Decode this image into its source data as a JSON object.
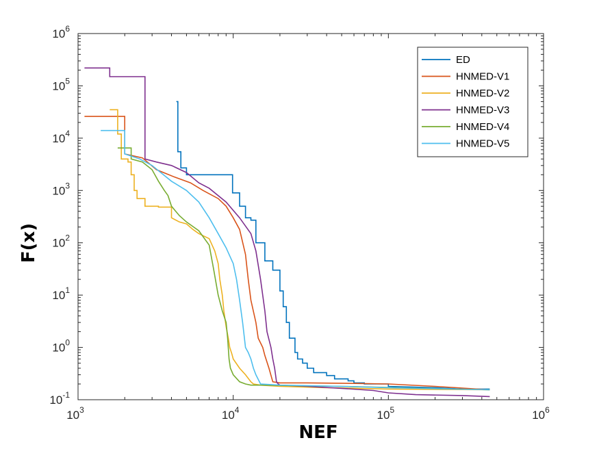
{
  "chart_data": {
    "type": "line",
    "xlabel": "NEF",
    "ylabel": "F(x)",
    "xscale": "log",
    "yscale": "log",
    "xlim": [
      1000,
      1000000
    ],
    "ylim": [
      0.1,
      1000000
    ],
    "x_ticks": [
      {
        "base": "10",
        "exp": "3"
      },
      {
        "base": "10",
        "exp": "4"
      },
      {
        "base": "10",
        "exp": "5"
      },
      {
        "base": "10",
        "exp": "6"
      }
    ],
    "y_ticks": [
      {
        "base": "10",
        "exp": "-1"
      },
      {
        "base": "10",
        "exp": "0"
      },
      {
        "base": "10",
        "exp": "1"
      },
      {
        "base": "10",
        "exp": "2"
      },
      {
        "base": "10",
        "exp": "3"
      },
      {
        "base": "10",
        "exp": "4"
      },
      {
        "base": "10",
        "exp": "5"
      },
      {
        "base": "10",
        "exp": "6"
      }
    ],
    "grid": false,
    "legend_position": "top-right",
    "series": [
      {
        "name": "ED",
        "color": "#0072BD",
        "x": [
          4300,
          4400,
          4400,
          4600,
          4600,
          5000,
          5000,
          9900,
          9900,
          11000,
          11000,
          12000,
          12000,
          13000,
          13000,
          14000,
          14000,
          16000,
          16000,
          18000,
          18000,
          20000,
          20000,
          21000,
          21000,
          22000,
          22000,
          23000,
          23000,
          25000,
          25000,
          26000,
          26000,
          28000,
          28000,
          30000,
          30000,
          33000,
          33000,
          40000,
          40000,
          45000,
          45000,
          55000,
          55000,
          60000,
          60000,
          70000,
          70000,
          100000,
          100000,
          200000,
          300000,
          450000
        ],
        "y": [
          50000,
          50000,
          5500,
          5500,
          2700,
          2700,
          2000,
          2000,
          900,
          900,
          500,
          500,
          300,
          300,
          270,
          270,
          100,
          100,
          45,
          45,
          30,
          30,
          12,
          12,
          6,
          6,
          3,
          3,
          1.5,
          1.5,
          0.8,
          0.8,
          0.6,
          0.6,
          0.5,
          0.5,
          0.4,
          0.4,
          0.33,
          0.33,
          0.29,
          0.29,
          0.25,
          0.25,
          0.23,
          0.23,
          0.21,
          0.21,
          0.2,
          0.2,
          0.18,
          0.17,
          0.16,
          0.16
        ]
      },
      {
        "name": "HNMED-V1",
        "color": "#D95319",
        "x": [
          1100,
          2000,
          2000,
          2600,
          3200,
          4200,
          5300,
          6400,
          8000,
          9000,
          10000,
          11000,
          12000,
          12500,
          13000,
          14000,
          14500,
          15500,
          16000,
          17000,
          18000,
          20000,
          30000,
          60000,
          100000,
          200000,
          450000
        ],
        "y": [
          26000,
          26000,
          5000,
          4200,
          2500,
          1800,
          1400,
          1000,
          700,
          500,
          300,
          180,
          60,
          20,
          8,
          3,
          1.5,
          1,
          0.7,
          0.4,
          0.22,
          0.21,
          0.21,
          0.205,
          0.2,
          0.18,
          0.155
        ]
      },
      {
        "name": "HNMED-V2",
        "color": "#EDB120",
        "x": [
          1600,
          1800,
          1800,
          1900,
          1900,
          2100,
          2100,
          2200,
          2200,
          2300,
          2300,
          2400,
          2400,
          2700,
          2700,
          3300,
          3300,
          4000,
          4000,
          4500,
          5000,
          5500,
          6000,
          7000,
          7600,
          8000,
          8200,
          8500,
          8700,
          9000,
          9300,
          9500,
          9800,
          10000,
          11000,
          12000,
          13000,
          13500,
          15000,
          20000,
          40000,
          100000,
          450000
        ],
        "y": [
          35000,
          35000,
          12000,
          12000,
          4000,
          4000,
          3500,
          3500,
          2000,
          2000,
          1000,
          1000,
          700,
          700,
          500,
          500,
          480,
          480,
          300,
          250,
          230,
          180,
          150,
          120,
          70,
          40,
          20,
          10,
          5,
          2.5,
          1.5,
          1,
          0.75,
          0.6,
          0.4,
          0.3,
          0.22,
          0.2,
          0.19,
          0.18,
          0.17,
          0.16,
          0.155
        ]
      },
      {
        "name": "HNMED-V3",
        "color": "#7E2F8E",
        "x": [
          1100,
          1600,
          1600,
          2700,
          2700,
          3200,
          4000,
          5000,
          6000,
          7000,
          9000,
          11000,
          13000,
          14000,
          15000,
          16000,
          16500,
          17500,
          18000,
          18500,
          19000,
          19500,
          20000,
          30000,
          50000,
          80000,
          100000,
          150000,
          300000,
          450000
        ],
        "y": [
          220000,
          220000,
          150000,
          150000,
          4000,
          3500,
          3000,
          2200,
          1400,
          1100,
          600,
          300,
          150,
          70,
          20,
          5,
          2,
          1,
          0.6,
          0.4,
          0.22,
          0.2,
          0.19,
          0.18,
          0.165,
          0.15,
          0.135,
          0.125,
          0.12,
          0.115
        ]
      },
      {
        "name": "HNMED-V4",
        "color": "#77AC30",
        "x": [
          1800,
          2200,
          2200,
          2600,
          3000,
          3300,
          3600,
          3800,
          4000,
          4500,
          5000,
          6000,
          7000,
          7500,
          8000,
          8500,
          9000,
          9200,
          9400,
          9600,
          10000,
          11000,
          12000,
          13000,
          14000,
          15000,
          50000,
          450000
        ],
        "y": [
          6500,
          6500,
          4000,
          3500,
          2500,
          1500,
          1000,
          800,
          500,
          330,
          250,
          170,
          90,
          30,
          10,
          5,
          3,
          1.5,
          0.6,
          0.4,
          0.3,
          0.22,
          0.2,
          0.19,
          0.19,
          0.19,
          0.18,
          0.155
        ]
      },
      {
        "name": "HNMED-V5",
        "color": "#4DBEEE",
        "x": [
          1400,
          2000,
          2000,
          2500,
          3000,
          4000,
          5000,
          6000,
          7000,
          8000,
          9000,
          10000,
          10500,
          11000,
          11500,
          12000,
          12500,
          13000,
          13500,
          14000,
          15000,
          20000,
          50000,
          100000,
          450000
        ],
        "y": [
          14000,
          14000,
          5000,
          4000,
          3000,
          1500,
          1000,
          600,
          300,
          150,
          80,
          40,
          20,
          8,
          3,
          1,
          0.8,
          0.6,
          0.4,
          0.3,
          0.2,
          0.19,
          0.18,
          0.17,
          0.155
        ]
      }
    ]
  }
}
